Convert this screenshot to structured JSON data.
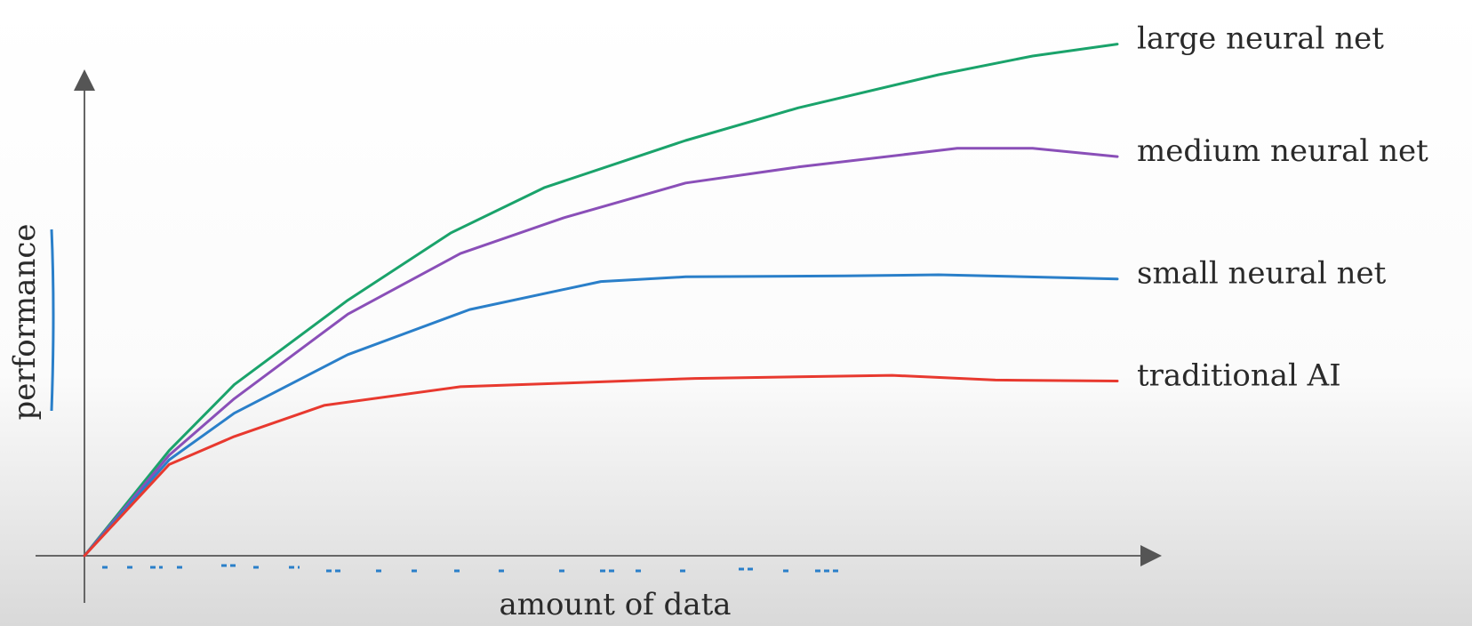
{
  "chart_data": {
    "type": "line",
    "xlabel": "amount of data",
    "ylabel": "performance",
    "xlim": [
      0,
      100
    ],
    "ylim": [
      0,
      100
    ],
    "series": [
      {
        "name": "large neural net",
        "color": "#1aa36b",
        "x": [
          0,
          8.2,
          14.5,
          25.5,
          35.5,
          44.5,
          58.2,
          69.1,
          82.7,
          91.8,
          100
        ],
        "values": [
          0,
          20.3,
          33.0,
          49.3,
          62.3,
          71.0,
          80.1,
          86.4,
          92.8,
          96.4,
          98.7
        ]
      },
      {
        "name": "medium neural net",
        "color": "#8a4fb8",
        "x": [
          0,
          8.2,
          14.5,
          25.5,
          36.4,
          46.4,
          58.2,
          69.1,
          84.5,
          91.8,
          100
        ],
        "values": [
          0,
          19.4,
          30.3,
          46.6,
          58.3,
          65.2,
          71.9,
          75.0,
          78.6,
          78.6,
          77.0
        ]
      },
      {
        "name": "small neural net",
        "color": "#2a7fc9",
        "x": [
          0,
          8.2,
          14.5,
          25.5,
          37.3,
          50,
          58.2,
          73.6,
          82.7,
          100
        ],
        "values": [
          0,
          18.5,
          27.5,
          38.8,
          47.5,
          52.9,
          53.8,
          54.0,
          54.2,
          53.4
        ]
      },
      {
        "name": "traditional AI",
        "color": "#e8392f",
        "x": [
          0,
          8.2,
          14.5,
          23.2,
          36.4,
          46.4,
          59.1,
          78.2,
          88.2,
          100
        ],
        "values": [
          0,
          17.6,
          23.0,
          29.0,
          32.6,
          33.3,
          34.2,
          34.8,
          33.9,
          33.7
        ]
      }
    ]
  }
}
